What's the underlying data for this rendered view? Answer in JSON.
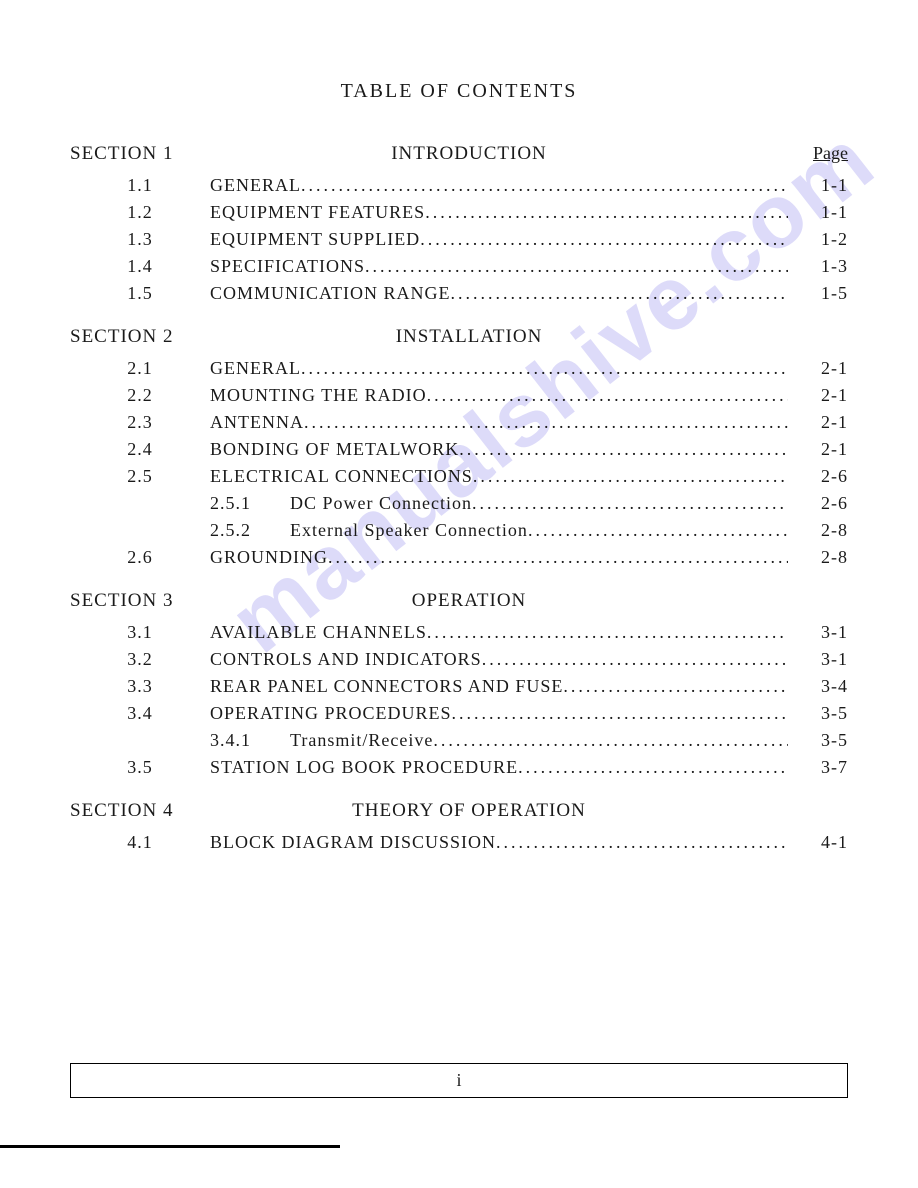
{
  "title": "TABLE OF CONTENTS",
  "page_header_label": "Page",
  "page_roman": "i",
  "watermark": "manualshive.com",
  "colors": {
    "text": "#1a1a1a",
    "background": "#ffffff",
    "watermark": "rgba(120,110,230,0.25)",
    "border": "#000000"
  },
  "sections": [
    {
      "label": "SECTION 1",
      "title": "INTRODUCTION",
      "show_page_header": true,
      "entries": [
        {
          "num": "1.1",
          "title": "GENERAL",
          "page": "1-1"
        },
        {
          "num": "1.2",
          "title": "EQUIPMENT FEATURES",
          "page": "1-1"
        },
        {
          "num": "1.3",
          "title": "EQUIPMENT SUPPLIED",
          "page": "1-2"
        },
        {
          "num": "1.4",
          "title": "SPECIFICATIONS",
          "page": "1-3"
        },
        {
          "num": "1.5",
          "title": "COMMUNICATION RANGE",
          "page": "1-5"
        }
      ]
    },
    {
      "label": "SECTION 2",
      "title": "INSTALLATION",
      "show_page_header": false,
      "entries": [
        {
          "num": "2.1",
          "title": "GENERAL",
          "page": "2-1"
        },
        {
          "num": "2.2",
          "title": "MOUNTING THE RADIO",
          "page": "2-1"
        },
        {
          "num": "2.3",
          "title": "ANTENNA",
          "page": "2-1"
        },
        {
          "num": "2.4",
          "title": "BONDING OF METALWORK",
          "page": "2-1"
        },
        {
          "num": "2.5",
          "title": "ELECTRICAL CONNECTIONS",
          "page": "2-6"
        },
        {
          "num": "",
          "subnum": "2.5.1",
          "title": "DC Power Connection",
          "page": "2-6"
        },
        {
          "num": "",
          "subnum": "2.5.2",
          "title": "External Speaker Connection",
          "page": "2-8"
        },
        {
          "num": "2.6",
          "title": "GROUNDING",
          "page": "2-8"
        }
      ]
    },
    {
      "label": "SECTION 3",
      "title": "OPERATION",
      "show_page_header": false,
      "entries": [
        {
          "num": "3.1",
          "title": "AVAILABLE CHANNELS",
          "page": "3-1"
        },
        {
          "num": "3.2",
          "title": "CONTROLS AND INDICATORS",
          "page": "3-1"
        },
        {
          "num": "3.3",
          "title": "REAR PANEL CONNECTORS AND FUSE",
          "page": "3-4"
        },
        {
          "num": "3.4",
          "title": "OPERATING PROCEDURES",
          "page": "3-5"
        },
        {
          "num": "",
          "subnum": "3.4.1",
          "title": "Transmit/Receive",
          "page": "3-5"
        },
        {
          "num": "3.5",
          "title": "STATION LOG BOOK PROCEDURE",
          "page": "3-7"
        }
      ]
    },
    {
      "label": "SECTION 4",
      "title": "THEORY OF OPERATION",
      "show_page_header": false,
      "entries": [
        {
          "num": "4.1",
          "title": "BLOCK DIAGRAM DISCUSSION",
          "page": "4-1"
        }
      ]
    }
  ]
}
